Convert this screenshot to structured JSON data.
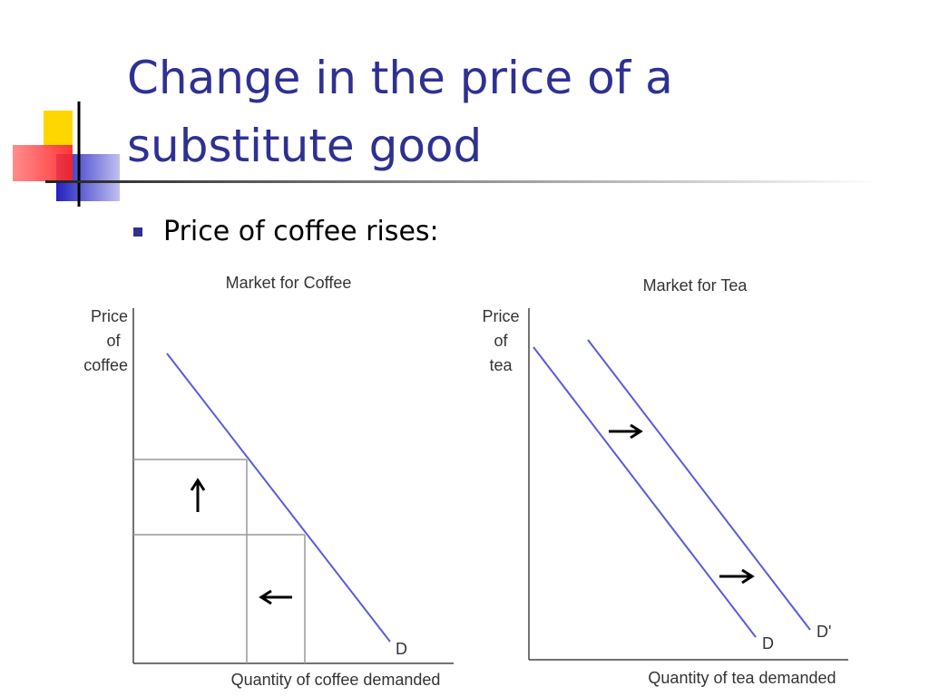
{
  "slide": {
    "title": [
      "Change in the price of a",
      "substitute good"
    ],
    "bullets": [
      "Price of coffee rises:"
    ]
  },
  "diagrams": [
    {
      "title": "Market for Coffee",
      "y_label": [
        "Price",
        "of",
        "coffee"
      ],
      "x_label": "Quantity of coffee demanded",
      "curve_labels": [
        "D"
      ]
    },
    {
      "title": "Market for Tea",
      "y_label": [
        "Price",
        "of",
        "tea"
      ],
      "x_label": "Quantity of tea demanded",
      "curve_labels": [
        "D",
        "D'"
      ]
    }
  ]
}
